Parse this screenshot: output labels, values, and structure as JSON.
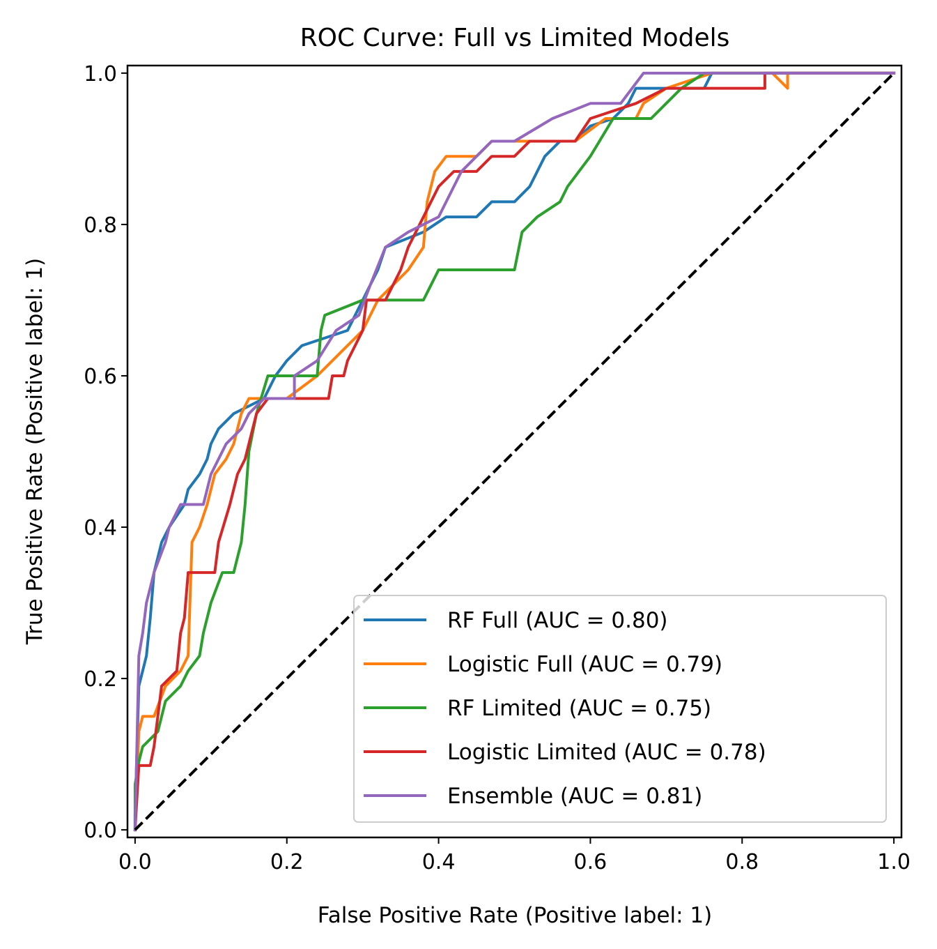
{
  "chart_data": {
    "type": "line",
    "title": "ROC Curve: Full vs Limited Models",
    "xlabel": "False Positive Rate (Positive label: 1)",
    "ylabel": "True Positive Rate (Positive label: 1)",
    "xlim": [
      -0.01,
      1.01
    ],
    "ylim": [
      -0.01,
      1.01
    ],
    "xticks": [
      0.0,
      0.2,
      0.4,
      0.6,
      0.8,
      1.0
    ],
    "yticks": [
      0.0,
      0.2,
      0.4,
      0.6,
      0.8,
      1.0
    ],
    "xtick_labels": [
      "0.0",
      "0.2",
      "0.4",
      "0.6",
      "0.8",
      "1.0"
    ],
    "ytick_labels": [
      "0.0",
      "0.2",
      "0.4",
      "0.6",
      "0.8",
      "1.0"
    ],
    "grid": false,
    "legend_position": "lower-right",
    "series": [
      {
        "name": "RF Full (AUC = 0.80)",
        "color": "#1f77b4",
        "points": [
          [
            0,
            0
          ],
          [
            0,
            0.02
          ],
          [
            0.005,
            0.19
          ],
          [
            0.01,
            0.21
          ],
          [
            0.015,
            0.23
          ],
          [
            0.02,
            0.28
          ],
          [
            0.025,
            0.34
          ],
          [
            0.03,
            0.36
          ],
          [
            0.035,
            0.38
          ],
          [
            0.045,
            0.4
          ],
          [
            0.065,
            0.43
          ],
          [
            0.07,
            0.45
          ],
          [
            0.085,
            0.47
          ],
          [
            0.095,
            0.49
          ],
          [
            0.1,
            0.51
          ],
          [
            0.11,
            0.53
          ],
          [
            0.13,
            0.55
          ],
          [
            0.17,
            0.57
          ],
          [
            0.185,
            0.6
          ],
          [
            0.2,
            0.62
          ],
          [
            0.22,
            0.64
          ],
          [
            0.28,
            0.66
          ],
          [
            0.3,
            0.7
          ],
          [
            0.31,
            0.72
          ],
          [
            0.32,
            0.74
          ],
          [
            0.33,
            0.77
          ],
          [
            0.38,
            0.79
          ],
          [
            0.41,
            0.81
          ],
          [
            0.45,
            0.81
          ],
          [
            0.47,
            0.83
          ],
          [
            0.5,
            0.83
          ],
          [
            0.52,
            0.85
          ],
          [
            0.53,
            0.87
          ],
          [
            0.54,
            0.89
          ],
          [
            0.56,
            0.91
          ],
          [
            0.58,
            0.91
          ],
          [
            0.6,
            0.93
          ],
          [
            0.63,
            0.94
          ],
          [
            0.65,
            0.96
          ],
          [
            0.66,
            0.98
          ],
          [
            0.69,
            0.98
          ],
          [
            0.75,
            0.98
          ],
          [
            0.76,
            1.0
          ],
          [
            1,
            1
          ]
        ]
      },
      {
        "name": "Logistic Full (AUC = 0.79)",
        "color": "#ff7f0e",
        "points": [
          [
            0,
            0
          ],
          [
            0.005,
            0.13
          ],
          [
            0.01,
            0.15
          ],
          [
            0.025,
            0.15
          ],
          [
            0.04,
            0.19
          ],
          [
            0.06,
            0.21
          ],
          [
            0.07,
            0.23
          ],
          [
            0.075,
            0.38
          ],
          [
            0.085,
            0.4
          ],
          [
            0.095,
            0.43
          ],
          [
            0.105,
            0.47
          ],
          [
            0.12,
            0.49
          ],
          [
            0.13,
            0.51
          ],
          [
            0.14,
            0.55
          ],
          [
            0.15,
            0.57
          ],
          [
            0.2,
            0.57
          ],
          [
            0.24,
            0.6
          ],
          [
            0.26,
            0.62
          ],
          [
            0.28,
            0.64
          ],
          [
            0.3,
            0.66
          ],
          [
            0.32,
            0.7
          ],
          [
            0.34,
            0.72
          ],
          [
            0.36,
            0.74
          ],
          [
            0.38,
            0.77
          ],
          [
            0.385,
            0.83
          ],
          [
            0.395,
            0.87
          ],
          [
            0.41,
            0.89
          ],
          [
            0.45,
            0.89
          ],
          [
            0.47,
            0.91
          ],
          [
            0.53,
            0.91
          ],
          [
            0.58,
            0.91
          ],
          [
            0.62,
            0.94
          ],
          [
            0.66,
            0.94
          ],
          [
            0.67,
            0.96
          ],
          [
            0.7,
            0.98
          ],
          [
            0.76,
            1.0
          ],
          [
            0.84,
            1.0
          ],
          [
            0.86,
            0.98
          ],
          [
            0.86,
            1.0
          ],
          [
            1,
            1
          ]
        ]
      },
      {
        "name": "RF Limited (AUC = 0.75)",
        "color": "#2ca02c",
        "points": [
          [
            0,
            0
          ],
          [
            0,
            0.06
          ],
          [
            0.005,
            0.09
          ],
          [
            0.01,
            0.11
          ],
          [
            0.03,
            0.13
          ],
          [
            0.04,
            0.17
          ],
          [
            0.06,
            0.19
          ],
          [
            0.07,
            0.21
          ],
          [
            0.085,
            0.23
          ],
          [
            0.09,
            0.26
          ],
          [
            0.1,
            0.3
          ],
          [
            0.115,
            0.34
          ],
          [
            0.13,
            0.34
          ],
          [
            0.135,
            0.36
          ],
          [
            0.14,
            0.38
          ],
          [
            0.145,
            0.43
          ],
          [
            0.15,
            0.5
          ],
          [
            0.16,
            0.55
          ],
          [
            0.175,
            0.6
          ],
          [
            0.21,
            0.6
          ],
          [
            0.24,
            0.6
          ],
          [
            0.245,
            0.66
          ],
          [
            0.25,
            0.68
          ],
          [
            0.3,
            0.7
          ],
          [
            0.34,
            0.7
          ],
          [
            0.38,
            0.7
          ],
          [
            0.39,
            0.72
          ],
          [
            0.4,
            0.74
          ],
          [
            0.45,
            0.74
          ],
          [
            0.5,
            0.74
          ],
          [
            0.51,
            0.79
          ],
          [
            0.53,
            0.81
          ],
          [
            0.56,
            0.83
          ],
          [
            0.57,
            0.85
          ],
          [
            0.6,
            0.89
          ],
          [
            0.63,
            0.94
          ],
          [
            0.68,
            0.94
          ],
          [
            0.7,
            0.96
          ],
          [
            0.72,
            0.98
          ],
          [
            0.75,
            1.0
          ],
          [
            1,
            1
          ]
        ]
      },
      {
        "name": "Logistic Limited (AUC = 0.78)",
        "color": "#d62728",
        "points": [
          [
            0,
            0
          ],
          [
            0.005,
            0.085
          ],
          [
            0.02,
            0.085
          ],
          [
            0.025,
            0.11
          ],
          [
            0.035,
            0.19
          ],
          [
            0.055,
            0.21
          ],
          [
            0.06,
            0.26
          ],
          [
            0.065,
            0.28
          ],
          [
            0.07,
            0.34
          ],
          [
            0.105,
            0.34
          ],
          [
            0.11,
            0.38
          ],
          [
            0.125,
            0.43
          ],
          [
            0.135,
            0.47
          ],
          [
            0.145,
            0.49
          ],
          [
            0.155,
            0.53
          ],
          [
            0.16,
            0.55
          ],
          [
            0.175,
            0.57
          ],
          [
            0.21,
            0.57
          ],
          [
            0.255,
            0.57
          ],
          [
            0.26,
            0.6
          ],
          [
            0.275,
            0.6
          ],
          [
            0.28,
            0.62
          ],
          [
            0.29,
            0.64
          ],
          [
            0.3,
            0.66
          ],
          [
            0.305,
            0.7
          ],
          [
            0.33,
            0.7
          ],
          [
            0.34,
            0.72
          ],
          [
            0.35,
            0.74
          ],
          [
            0.36,
            0.77
          ],
          [
            0.37,
            0.79
          ],
          [
            0.38,
            0.81
          ],
          [
            0.39,
            0.83
          ],
          [
            0.4,
            0.85
          ],
          [
            0.42,
            0.87
          ],
          [
            0.45,
            0.87
          ],
          [
            0.47,
            0.89
          ],
          [
            0.5,
            0.89
          ],
          [
            0.52,
            0.91
          ],
          [
            0.58,
            0.91
          ],
          [
            0.6,
            0.94
          ],
          [
            0.66,
            0.96
          ],
          [
            0.7,
            0.98
          ],
          [
            0.76,
            0.98
          ],
          [
            0.83,
            0.98
          ],
          [
            0.83,
            1.0
          ],
          [
            1,
            1
          ]
        ]
      },
      {
        "name": "Ensemble (AUC = 0.81)",
        "color": "#9467bd",
        "points": [
          [
            0,
            0
          ],
          [
            0.005,
            0.23
          ],
          [
            0.01,
            0.26
          ],
          [
            0.015,
            0.3
          ],
          [
            0.02,
            0.32
          ],
          [
            0.025,
            0.34
          ],
          [
            0.04,
            0.38
          ],
          [
            0.045,
            0.4
          ],
          [
            0.06,
            0.43
          ],
          [
            0.09,
            0.43
          ],
          [
            0.1,
            0.47
          ],
          [
            0.11,
            0.49
          ],
          [
            0.12,
            0.51
          ],
          [
            0.14,
            0.53
          ],
          [
            0.15,
            0.55
          ],
          [
            0.17,
            0.57
          ],
          [
            0.21,
            0.57
          ],
          [
            0.21,
            0.6
          ],
          [
            0.24,
            0.62
          ],
          [
            0.265,
            0.66
          ],
          [
            0.295,
            0.68
          ],
          [
            0.31,
            0.72
          ],
          [
            0.33,
            0.77
          ],
          [
            0.36,
            0.79
          ],
          [
            0.4,
            0.81
          ],
          [
            0.41,
            0.83
          ],
          [
            0.42,
            0.85
          ],
          [
            0.43,
            0.87
          ],
          [
            0.45,
            0.89
          ],
          [
            0.47,
            0.91
          ],
          [
            0.5,
            0.91
          ],
          [
            0.55,
            0.94
          ],
          [
            0.6,
            0.96
          ],
          [
            0.64,
            0.96
          ],
          [
            0.67,
            1.0
          ],
          [
            1,
            1
          ]
        ]
      }
    ],
    "reference_line": {
      "color": "#000000",
      "style": "dashed",
      "points": [
        [
          0,
          0
        ],
        [
          1,
          1
        ]
      ]
    }
  }
}
